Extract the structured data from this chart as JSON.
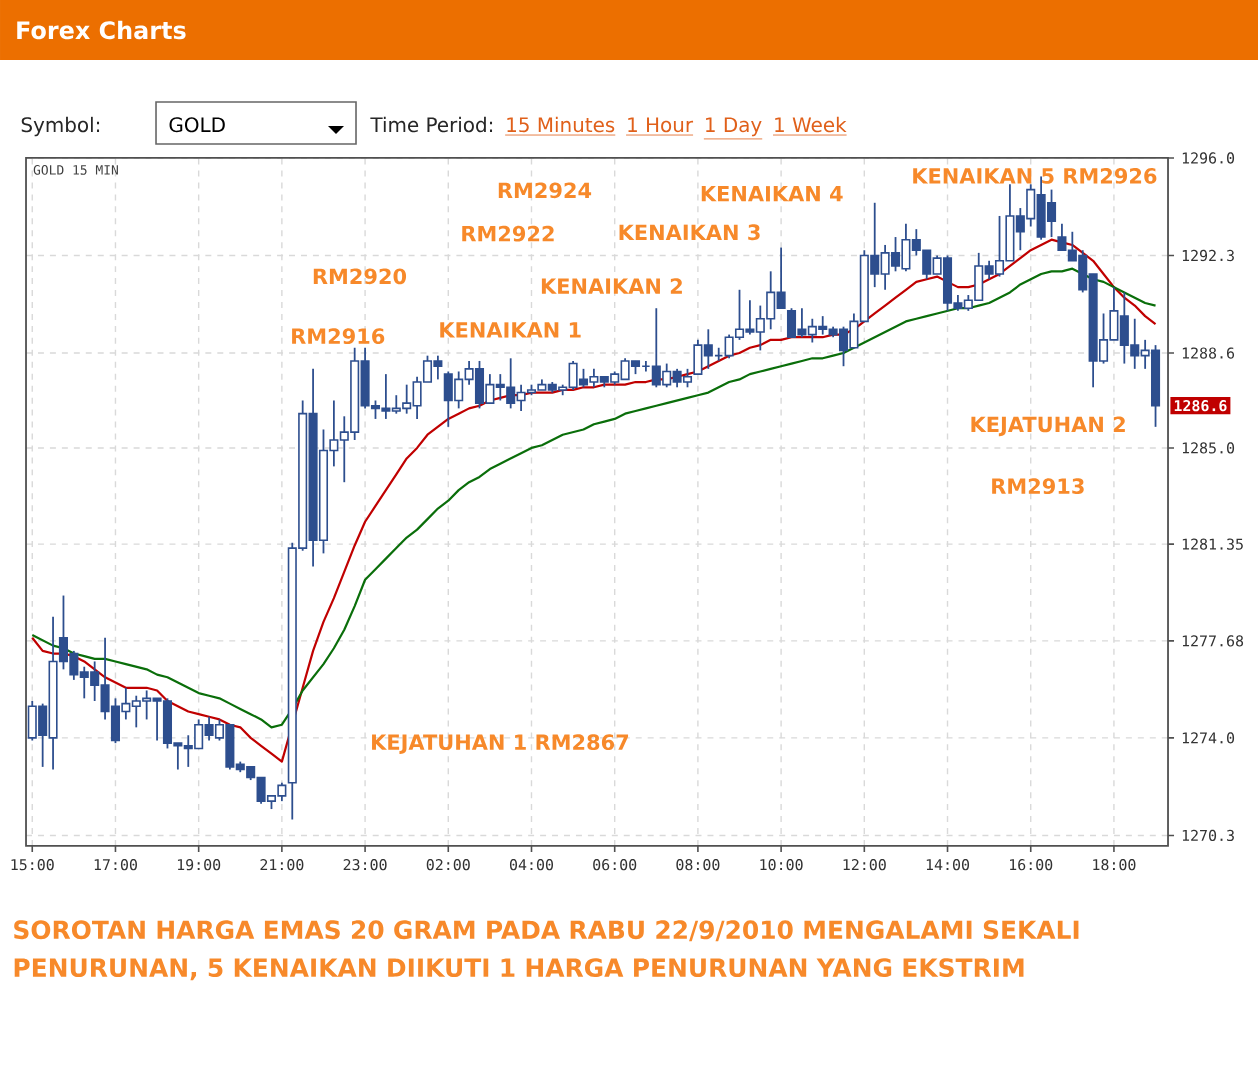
{
  "chart_data": {
    "type": "candlestick",
    "title": "Forex Charts",
    "subtitle": "GOLD 15 MIN",
    "color": "#2d4e8e",
    "grid": true,
    "ylim": [
      1269.9,
      1296.0
    ],
    "categories": [
      "15:00",
      null,
      null,
      null,
      null,
      null,
      null,
      null,
      "17:00",
      null,
      null,
      null,
      null,
      null,
      null,
      null,
      "19:00",
      null,
      null,
      null,
      null,
      null,
      null,
      null,
      "21:00",
      null,
      null,
      null,
      null,
      null,
      null,
      null,
      "23:00",
      null,
      null,
      null,
      null,
      null,
      null,
      null,
      "02:00",
      null,
      null,
      null,
      null,
      null,
      null,
      null,
      "04:00",
      null,
      null,
      null,
      null,
      null,
      null,
      null,
      "06:00",
      null,
      null,
      null,
      null,
      null,
      null,
      null,
      "08:00",
      null,
      null,
      null,
      null,
      null,
      null,
      null,
      "10:00",
      null,
      null,
      null,
      null,
      null,
      null,
      null,
      "12:00",
      null,
      null,
      null,
      null,
      null,
      null,
      null,
      "14:00",
      null,
      null,
      null,
      null,
      null,
      null,
      null,
      "16:00",
      null,
      null,
      null,
      null,
      null,
      null,
      null,
      "18:00",
      null,
      null,
      null,
      null
    ],
    "yticks": [
      1270.3,
      {
        "value": 1274.0,
        "label": "1274.0"
      },
      1277.68,
      1281.35,
      {
        "value": 1285.0,
        "label": "1285.0"
      },
      1288.6,
      1292.3,
      {
        "value": 1296.0,
        "label": "1296.0"
      }
    ],
    "ohlc": [
      [
        1274.0,
        1275.4,
        1273.9,
        1275.2
      ],
      [
        1275.2,
        1275.3,
        1272.9,
        1274.1
      ],
      [
        1274.0,
        1278.6,
        1272.8,
        1276.9
      ],
      [
        1277.8,
        1279.4,
        1276.6,
        1276.9
      ],
      [
        1277.2,
        1277.3,
        1276.2,
        1276.4
      ],
      [
        1276.5,
        1276.7,
        1275.5,
        1276.3
      ],
      [
        1276.5,
        1276.9,
        1275.4,
        1276.0
      ],
      [
        1276.0,
        1277.8,
        1274.7,
        1275.0
      ],
      [
        1275.2,
        1275.5,
        1273.8,
        1273.9
      ],
      [
        1275.0,
        1275.9,
        1274.7,
        1275.3
      ],
      [
        1275.2,
        1275.6,
        1274.4,
        1275.4
      ],
      [
        1275.4,
        1275.8,
        1274.7,
        1275.5
      ],
      [
        1275.5,
        1275.5,
        1273.9,
        1275.4
      ],
      [
        1275.4,
        1275.5,
        1273.6,
        1273.8
      ],
      [
        1273.8,
        1273.8,
        1272.8,
        1273.7
      ],
      [
        1273.7,
        1274.1,
        1272.9,
        1273.6
      ],
      [
        1273.6,
        1274.7,
        1273.6,
        1274.5
      ],
      [
        1274.5,
        1274.8,
        1273.9,
        1274.1
      ],
      [
        1274.0,
        1274.7,
        1273.9,
        1274.5
      ],
      [
        1274.5,
        1274.5,
        1272.8,
        1272.9
      ],
      [
        1273.0,
        1273.1,
        1272.7,
        1272.8
      ],
      [
        1272.9,
        1272.9,
        1272.4,
        1272.5
      ],
      [
        1272.5,
        1272.5,
        1271.5,
        1271.6
      ],
      [
        1271.6,
        1271.8,
        1271.3,
        1271.8
      ],
      [
        1271.8,
        1272.3,
        1271.6,
        1272.2
      ],
      [
        1272.3,
        1281.4,
        1270.9,
        1281.2
      ],
      [
        1281.2,
        1286.8,
        1281.1,
        1286.3
      ],
      [
        1286.3,
        1288.0,
        1280.5,
        1281.5
      ],
      [
        1281.5,
        1285.7,
        1281.0,
        1284.9
      ],
      [
        1284.9,
        1286.8,
        1284.3,
        1285.3
      ],
      [
        1285.3,
        1286.2,
        1283.7,
        1285.6
      ],
      [
        1285.6,
        1288.8,
        1285.3,
        1288.3
      ],
      [
        1288.3,
        1288.8,
        1286.5,
        1286.6
      ],
      [
        1286.6,
        1286.8,
        1286.1,
        1286.5
      ],
      [
        1286.5,
        1287.8,
        1286.1,
        1286.4
      ],
      [
        1286.4,
        1287.0,
        1286.3,
        1286.5
      ],
      [
        1286.5,
        1287.4,
        1286.3,
        1286.7
      ],
      [
        1286.6,
        1287.7,
        1286.1,
        1287.5
      ],
      [
        1287.5,
        1288.5,
        1287.5,
        1288.3
      ],
      [
        1288.3,
        1288.5,
        1287.6,
        1288.1
      ],
      [
        1287.8,
        1287.9,
        1285.8,
        1286.8
      ],
      [
        1286.8,
        1287.9,
        1286.5,
        1287.6
      ],
      [
        1287.6,
        1288.3,
        1287.4,
        1288.0
      ],
      [
        1288.0,
        1288.3,
        1286.5,
        1286.7
      ],
      [
        1286.7,
        1287.8,
        1286.7,
        1287.4
      ],
      [
        1287.4,
        1287.8,
        1286.8,
        1287.3
      ],
      [
        1287.3,
        1288.4,
        1286.5,
        1286.7
      ],
      [
        1286.8,
        1287.4,
        1286.4,
        1287.1
      ],
      [
        1287.1,
        1287.4,
        1287.0,
        1287.2
      ],
      [
        1287.2,
        1287.6,
        1287.2,
        1287.4
      ],
      [
        1287.4,
        1287.5,
        1287.1,
        1287.2
      ],
      [
        1287.2,
        1287.4,
        1287.0,
        1287.3
      ],
      [
        1287.3,
        1288.3,
        1287.2,
        1288.2
      ],
      [
        1287.6,
        1288.0,
        1287.3,
        1287.4
      ],
      [
        1287.5,
        1288.0,
        1287.3,
        1287.7
      ],
      [
        1287.7,
        1287.7,
        1287.3,
        1287.5
      ],
      [
        1287.5,
        1287.9,
        1287.4,
        1287.8
      ],
      [
        1287.6,
        1288.4,
        1287.6,
        1288.3
      ],
      [
        1288.3,
        1288.3,
        1287.8,
        1288.1
      ],
      [
        1288.1,
        1288.3,
        1287.9,
        1288.1
      ],
      [
        1288.1,
        1290.3,
        1287.3,
        1287.4
      ],
      [
        1287.4,
        1288.2,
        1287.3,
        1287.9
      ],
      [
        1287.9,
        1288.0,
        1287.3,
        1287.5
      ],
      [
        1287.5,
        1288.0,
        1287.3,
        1287.7
      ],
      [
        1287.8,
        1289.1,
        1287.8,
        1288.9
      ],
      [
        1288.9,
        1289.5,
        1288.0,
        1288.5
      ],
      [
        1288.5,
        1288.8,
        1288.3,
        1288.5
      ],
      [
        1288.5,
        1289.3,
        1288.4,
        1289.2
      ],
      [
        1289.2,
        1291.0,
        1289.1,
        1289.5
      ],
      [
        1289.5,
        1290.6,
        1289.3,
        1289.4
      ],
      [
        1289.4,
        1290.4,
        1288.7,
        1289.9
      ],
      [
        1289.9,
        1291.7,
        1289.5,
        1290.9
      ],
      [
        1290.9,
        1292.6,
        1290.3,
        1290.3
      ],
      [
        1290.2,
        1290.3,
        1289.2,
        1289.2
      ],
      [
        1289.5,
        1290.3,
        1289.2,
        1289.3
      ],
      [
        1289.3,
        1289.9,
        1289.0,
        1289.6
      ],
      [
        1289.6,
        1290.0,
        1289.3,
        1289.5
      ],
      [
        1289.5,
        1289.6,
        1289.2,
        1289.3
      ],
      [
        1289.5,
        1289.6,
        1288.1,
        1288.7
      ],
      [
        1288.8,
        1290.1,
        1288.8,
        1289.8
      ],
      [
        1289.8,
        1292.5,
        1289.8,
        1292.3
      ],
      [
        1292.3,
        1294.3,
        1291.1,
        1291.6
      ],
      [
        1291.6,
        1292.7,
        1291.0,
        1292.4
      ],
      [
        1292.4,
        1293.0,
        1291.7,
        1291.9
      ],
      [
        1291.8,
        1293.5,
        1291.7,
        1292.9
      ],
      [
        1292.9,
        1293.3,
        1292.3,
        1292.5
      ],
      [
        1292.5,
        1292.5,
        1291.4,
        1291.6
      ],
      [
        1291.6,
        1292.3,
        1291.6,
        1292.2
      ],
      [
        1292.2,
        1292.3,
        1290.2,
        1290.5
      ],
      [
        1290.5,
        1290.8,
        1290.2,
        1290.3
      ],
      [
        1290.3,
        1290.8,
        1290.2,
        1290.6
      ],
      [
        1290.6,
        1292.4,
        1290.6,
        1291.9
      ],
      [
        1291.9,
        1292.1,
        1291.4,
        1291.6
      ],
      [
        1291.6,
        1293.8,
        1291.5,
        1292.1
      ],
      [
        1292.1,
        1295.0,
        1292.1,
        1293.8
      ],
      [
        1293.8,
        1294.1,
        1292.5,
        1293.2
      ],
      [
        1293.7,
        1295.0,
        1293.4,
        1294.8
      ],
      [
        1294.6,
        1295.3,
        1292.9,
        1293.0
      ],
      [
        1294.3,
        1294.8,
        1293.0,
        1293.6
      ],
      [
        1293.0,
        1293.5,
        1292.5,
        1292.5
      ],
      [
        1292.5,
        1293.2,
        1292.1,
        1292.1
      ],
      [
        1292.3,
        1292.5,
        1290.9,
        1291.0
      ],
      [
        1291.6,
        1291.6,
        1287.3,
        1288.3
      ],
      [
        1288.3,
        1290.1,
        1288.2,
        1289.1
      ],
      [
        1289.1,
        1291.1,
        1289.1,
        1290.2
      ],
      [
        1290.0,
        1290.9,
        1288.2,
        1288.9
      ],
      [
        1288.9,
        1289.9,
        1288.0,
        1288.5
      ],
      [
        1288.5,
        1289.1,
        1288.0,
        1288.7
      ],
      [
        1288.7,
        1288.9,
        1285.8,
        1286.6
      ]
    ],
    "series": [
      {
        "type": "line",
        "color": "#c00000",
        "values": [
          1277.8,
          1277.3,
          1277.2,
          1277.2,
          1277.1,
          1276.9,
          1276.6,
          1276.3,
          1276.1,
          1275.9,
          1275.9,
          1275.9,
          1275.8,
          1275.4,
          1275.2,
          1275.0,
          1274.9,
          1274.8,
          1274.7,
          1274.5,
          1274.4,
          1274.0,
          1273.7,
          1273.4,
          1273.1,
          null,
          1275.9,
          1277.3,
          1278.4,
          1279.3,
          1280.3,
          1281.3,
          1282.2,
          1282.8,
          1283.4,
          1284.0,
          1284.6,
          1285.0,
          1285.5,
          1285.8,
          1286.1,
          1286.3,
          1286.5,
          1286.6,
          1286.8,
          1286.9,
          1287.0,
          1287.0,
          1287.1,
          1287.1,
          1287.1,
          1287.2,
          1287.2,
          1287.3,
          1287.3,
          1287.4,
          1287.4,
          1287.4,
          1287.5,
          1287.5,
          1287.6,
          1287.6,
          1287.7,
          1287.8,
          1287.9,
          1288.1,
          1288.3,
          1288.5,
          1288.6,
          1288.8,
          1288.9,
          1289.1,
          1289.1,
          1289.2,
          1289.2,
          1289.2,
          1289.2,
          1289.3,
          1289.3,
          1289.5,
          1289.8,
          1290.1,
          1290.4,
          1290.7,
          1291.0,
          1291.3,
          1291.4,
          1291.5,
          1291.3,
          1291.1,
          1291.1,
          1291.2,
          1291.4,
          1291.6,
          1291.9,
          1292.2,
          1292.5,
          1292.7,
          1292.9,
          1292.8,
          1292.7,
          1292.4,
          1292.1,
          1291.6,
          1291.1,
          1290.7,
          1290.4,
          1290.0,
          1289.7
        ]
      },
      {
        "type": "line",
        "color": "#0a6e0a",
        "values": [
          1277.9,
          1277.7,
          1277.5,
          1277.4,
          1277.2,
          1277.1,
          1277.0,
          1277.0,
          1276.9,
          1276.8,
          1276.7,
          1276.6,
          1276.4,
          1276.3,
          1276.1,
          1275.9,
          1275.7,
          1275.6,
          1275.5,
          1275.3,
          1275.1,
          1274.9,
          1274.7,
          1274.4,
          1274.5,
          1275.1,
          1275.8,
          1276.3,
          1276.8,
          1277.4,
          1278.1,
          1279.0,
          1280.0,
          1280.4,
          1280.8,
          1281.2,
          1281.6,
          1281.9,
          1282.3,
          1282.7,
          1283.0,
          1283.4,
          1283.7,
          1283.9,
          1284.2,
          1284.4,
          1284.6,
          1284.8,
          1285.0,
          1285.1,
          1285.3,
          1285.5,
          1285.6,
          1285.7,
          1285.9,
          1286.0,
          1286.1,
          1286.3,
          1286.4,
          1286.5,
          1286.6,
          1286.7,
          1286.8,
          1286.9,
          1287.0,
          1287.1,
          1287.3,
          1287.5,
          1287.6,
          1287.8,
          1287.9,
          1288.0,
          1288.1,
          1288.2,
          1288.3,
          1288.4,
          1288.4,
          1288.5,
          1288.6,
          1288.8,
          1289.0,
          1289.2,
          1289.4,
          1289.6,
          1289.8,
          1289.9,
          1290.0,
          1290.1,
          1290.2,
          1290.3,
          1290.3,
          1290.4,
          1290.5,
          1290.7,
          1290.9,
          1291.2,
          1291.4,
          1291.6,
          1291.7,
          1291.7,
          1291.8,
          1291.6,
          1291.4,
          1291.3,
          1291.1,
          1290.9,
          1290.7,
          1290.5,
          1290.4
        ]
      }
    ],
    "annotations": [
      "RM2916",
      "KENAIKAN 1",
      "RM2920",
      "RM2922",
      "KENAIKAN 2",
      "RM2924",
      "KENAIKAN 3",
      "KENAIKAN 4",
      "KENAIKAN 5 RM2926",
      "KEJATUHAN 2",
      "RM2913",
      "KEJATUHAN 1 RM2867",
      "1286.6",
      "Symbol:",
      "GOLD",
      "Time Period:",
      "15 Minutes",
      "1 Hour",
      "1 Day",
      "1 Week",
      "SOROTAN HARGA EMAS 20 GRAM PADA RABU 22/9/2010 MENGALAMI SEKALI PENURUNAN, 5 KENAIKAN DIIKUTI 1 HARGA PENURUNAN YANG EKSTRIM"
    ]
  }
}
